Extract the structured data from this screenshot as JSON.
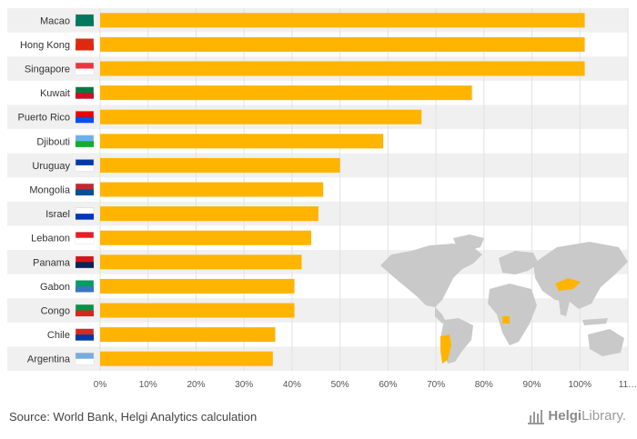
{
  "chart_data": {
    "type": "bar",
    "orientation": "horizontal",
    "categories": [
      "Macao",
      "Hong Kong",
      "Singapore",
      "Kuwait",
      "Puerto Rico",
      "Djibouti",
      "Uruguay",
      "Mongolia",
      "Israel",
      "Lebanon",
      "Panama",
      "Gabon",
      "Congo",
      "Chile",
      "Argentina"
    ],
    "values": [
      101,
      101,
      101,
      77.5,
      67,
      59,
      50,
      46.5,
      45.5,
      44,
      42,
      40.5,
      40.5,
      36.5,
      36
    ],
    "xticks": [
      "0%",
      "10%",
      "20%",
      "30%",
      "40%",
      "50%",
      "60%",
      "70%",
      "80%",
      "90%",
      "100%",
      "11…"
    ],
    "xlim": [
      0,
      110
    ],
    "grid": true,
    "bar_color": "#ffb400",
    "stripe_color": "#f0f0f0"
  },
  "footer": {
    "source": "Source: World Bank, Helgi Analytics calculation",
    "logo_prefix": "Helgi",
    "logo_suffix": "Library."
  },
  "colors": {
    "map_land": "#c9c9c9",
    "highlight": "#ffb400"
  }
}
